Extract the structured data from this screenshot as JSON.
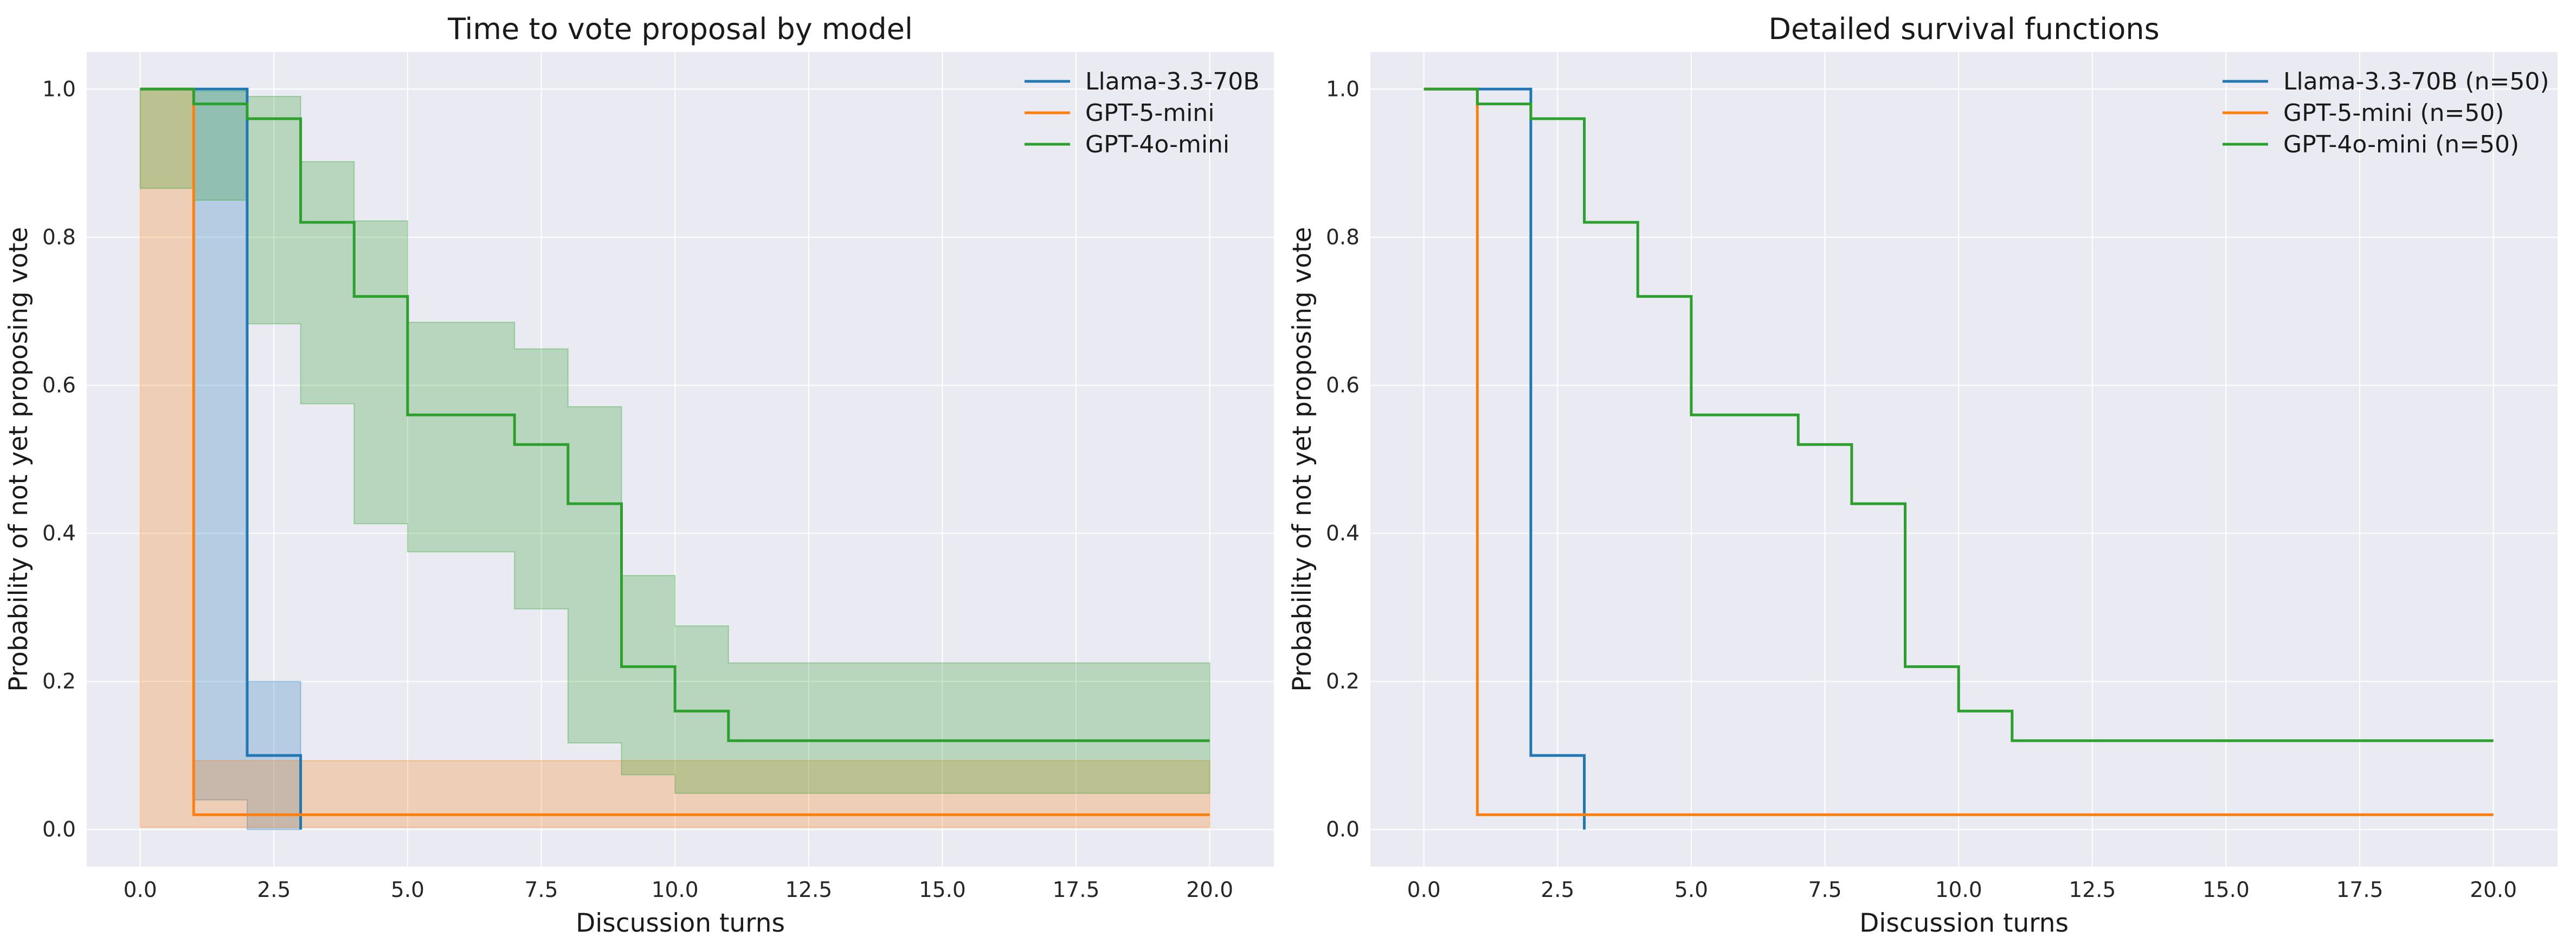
{
  "chart_data": [
    {
      "type": "line",
      "title": "Time to vote proposal by model",
      "xlabel": "Discussion turns",
      "ylabel": "Probability of not yet proposing vote",
      "xlim": [
        -1,
        21.2
      ],
      "ylim": [
        -0.05,
        1.05
      ],
      "x_ticks": [
        0.0,
        2.5,
        5.0,
        7.5,
        10.0,
        12.5,
        15.0,
        17.5,
        20.0
      ],
      "x_tick_labels": [
        "0.0",
        "2.5",
        "5.0",
        "7.5",
        "10.0",
        "12.5",
        "15.0",
        "17.5",
        "20.0"
      ],
      "y_ticks": [
        0.0,
        0.2,
        0.4,
        0.6,
        0.8,
        1.0
      ],
      "y_tick_labels": [
        "0.0",
        "0.2",
        "0.4",
        "0.6",
        "0.8",
        "1.0"
      ],
      "grid": true,
      "legend_position": "top-right",
      "step": "post",
      "series": [
        {
          "name": "Llama-3.3-70B",
          "color": "#1f77b4",
          "x": [
            0,
            1,
            2,
            3
          ],
          "y": [
            1.0,
            1.0,
            0.1,
            0.0
          ],
          "ci_lower": [
            1.0,
            1.0,
            0.04,
            0.0
          ],
          "ci_upper": [
            1.0,
            1.0,
            0.2,
            0.0
          ]
        },
        {
          "name": "GPT-5-mini",
          "color": "#ff7f0e",
          "x": [
            0,
            1,
            20
          ],
          "y": [
            1.0,
            0.02,
            0.02
          ],
          "ci_lower": [
            1.0,
            0.003,
            0.003
          ],
          "ci_upper": [
            1.0,
            0.093,
            0.093
          ]
        },
        {
          "name": "GPT-4o-mini",
          "color": "#2ca02c",
          "x": [
            0,
            1,
            2,
            3,
            4,
            5,
            7,
            8,
            9,
            10,
            11,
            20
          ],
          "y": [
            1.0,
            0.98,
            0.96,
            0.82,
            0.72,
            0.56,
            0.52,
            0.44,
            0.22,
            0.16,
            0.12,
            0.12
          ],
          "ci_lower": [
            1.0,
            0.866,
            0.85,
            0.683,
            0.575,
            0.413,
            0.375,
            0.298,
            0.117,
            0.074,
            0.049,
            0.049
          ],
          "ci_upper": [
            1.0,
            0.997,
            0.99,
            0.902,
            0.822,
            0.685,
            0.649,
            0.571,
            0.343,
            0.275,
            0.225,
            0.225
          ]
        }
      ]
    },
    {
      "type": "line",
      "title": "Detailed survival functions",
      "xlabel": "Discussion turns",
      "ylabel": "Probability of not yet proposing vote",
      "xlim": [
        -1,
        21.2
      ],
      "ylim": [
        -0.05,
        1.05
      ],
      "x_ticks": [
        0.0,
        2.5,
        5.0,
        7.5,
        10.0,
        12.5,
        15.0,
        17.5,
        20.0
      ],
      "x_tick_labels": [
        "0.0",
        "2.5",
        "5.0",
        "7.5",
        "10.0",
        "12.5",
        "15.0",
        "17.5",
        "20.0"
      ],
      "y_ticks": [
        0.0,
        0.2,
        0.4,
        0.6,
        0.8,
        1.0
      ],
      "y_tick_labels": [
        "0.0",
        "0.2",
        "0.4",
        "0.6",
        "0.8",
        "1.0"
      ],
      "grid": true,
      "legend_position": "top-right",
      "step": "post",
      "series": [
        {
          "name": "Llama-3.3-70B (n=50)",
          "color": "#1f77b4",
          "x": [
            0,
            1,
            2,
            3
          ],
          "y": [
            1.0,
            1.0,
            0.1,
            0.0
          ]
        },
        {
          "name": "GPT-5-mini (n=50)",
          "color": "#ff7f0e",
          "x": [
            0,
            1,
            20
          ],
          "y": [
            1.0,
            0.02,
            0.02
          ]
        },
        {
          "name": "GPT-4o-mini (n=50)",
          "color": "#2ca02c",
          "x": [
            0,
            1,
            2,
            3,
            4,
            5,
            7,
            8,
            9,
            10,
            11,
            20
          ],
          "y": [
            1.0,
            0.98,
            0.96,
            0.82,
            0.72,
            0.56,
            0.52,
            0.44,
            0.22,
            0.16,
            0.12,
            0.12
          ]
        }
      ]
    }
  ],
  "style": {
    "panel_background": "#eaeaf2",
    "grid_color": "#ffffff",
    "text_color": "#1a1a1a"
  }
}
